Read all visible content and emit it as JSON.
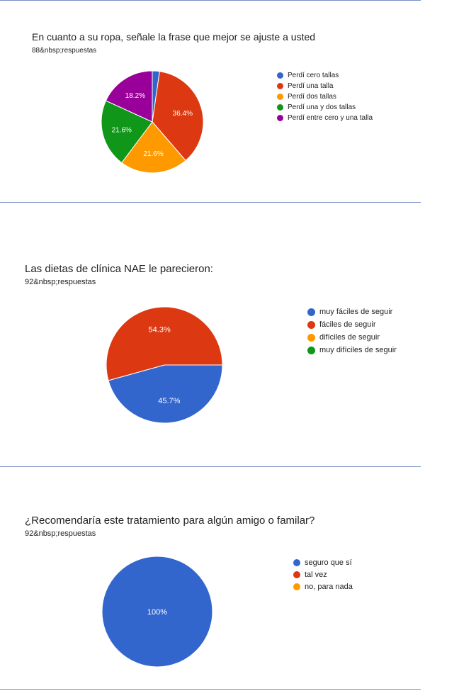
{
  "colors": {
    "blue": "#3366cc",
    "red": "#dc3912",
    "orange": "#ff9900",
    "green": "#109618",
    "purple": "#990099"
  },
  "sections": [
    {
      "title": "En cuanto a su ropa, señale la frase que mejor se ajuste a usted",
      "responses": "88&nbsp;respuestas"
    },
    {
      "title": "Las dietas de clínica NAE le parecieron:",
      "responses": "92&nbsp;respuestas"
    },
    {
      "title": "¿Recomendaría este tratamiento para algún amigo o familar?",
      "responses": "92&nbsp;respuestas"
    }
  ],
  "chart_data": [
    {
      "type": "pie",
      "title": "En cuanto a su ropa, señale la frase que mejor se ajuste a usted",
      "categories": [
        "Perdí cero tallas",
        "Perdí una talla",
        "Perdí dos tallas",
        "Perdí una y dos tallas",
        "Perdí entre cero y una talla"
      ],
      "values": [
        2.3,
        36.4,
        21.6,
        21.6,
        18.2
      ],
      "labels": [
        "",
        "36.4%",
        "21.6%",
        "21.6%",
        "18.2%"
      ],
      "colors": [
        "#3366cc",
        "#dc3912",
        "#ff9900",
        "#109618",
        "#990099"
      ],
      "legend": "right"
    },
    {
      "type": "pie",
      "title": "Las dietas de clínica NAE le parecieron:",
      "categories": [
        "muy fáciles de seguir",
        "fáciles de seguir",
        "difíciles de seguir",
        "muy difíciles de seguir"
      ],
      "values": [
        45.7,
        54.3,
        0,
        0
      ],
      "labels": [
        "45.7%",
        "54.3%",
        "",
        ""
      ],
      "colors": [
        "#3366cc",
        "#dc3912",
        "#ff9900",
        "#109618"
      ],
      "legend": "right"
    },
    {
      "type": "pie",
      "title": "¿Recomendaría este tratamiento para algún amigo o familar?",
      "categories": [
        "seguro que sí",
        "tal vez",
        "no, para nada"
      ],
      "values": [
        100,
        0,
        0
      ],
      "labels": [
        "100%",
        "",
        ""
      ],
      "colors": [
        "#3366cc",
        "#dc3912",
        "#ff9900"
      ],
      "legend": "right"
    }
  ]
}
